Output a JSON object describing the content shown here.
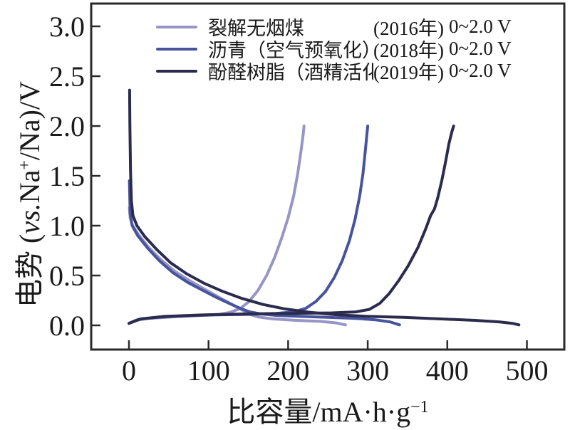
{
  "figure": {
    "background": "#ffffff",
    "frame_color": "#2a2a2a",
    "tick_color": "#2a2a2a",
    "text_color": "#1a1a1a"
  },
  "axes": {
    "x_label_main": "比容量/mA·h·g",
    "x_label_sup": "−1",
    "y_label_p1": "电势 (",
    "y_label_italic": "vs.",
    "y_label_p2": "Na",
    "y_label_sup": "+",
    "y_label_p3": "/Na)/V"
  },
  "chart_data": {
    "type": "line",
    "title": "",
    "xlabel": "比容量/mA·h·g⁻¹",
    "ylabel": "电势 (vs.Na⁺/Na)/V",
    "xlim": [
      -47,
      547
    ],
    "ylim": [
      -0.24,
      3.23
    ],
    "x_ticks": [
      0,
      100,
      200,
      300,
      400,
      500
    ],
    "y_ticks": [
      {
        "v": 0.0,
        "label": "0.0"
      },
      {
        "v": 0.5,
        "label": "0.5"
      },
      {
        "v": 1.0,
        "label": "1.0"
      },
      {
        "v": 1.5,
        "label": "1.5"
      },
      {
        "v": 2.0,
        "label": "2.0"
      },
      {
        "v": 2.5,
        "label": "2.5"
      },
      {
        "v": 3.0,
        "label": "3.0"
      }
    ],
    "grid": false,
    "legend_position": "top-inside",
    "series": [
      {
        "name": "裂解无烟煤",
        "year": "(2016年)",
        "voltage_window": "0~2.0 V",
        "color": "#9795c5",
        "discharge_capacity_mAh_g": 272,
        "charge_capacity_mAh_g": 220,
        "discharge": [
          [
            0.5,
            1.18
          ],
          [
            1.5,
            1.08
          ],
          [
            4,
            1.01
          ],
          [
            12,
            0.91
          ],
          [
            25,
            0.78
          ],
          [
            40,
            0.66
          ],
          [
            58,
            0.54
          ],
          [
            78,
            0.44
          ],
          [
            100,
            0.34
          ],
          [
            118,
            0.26
          ],
          [
            132,
            0.2
          ],
          [
            143,
            0.15
          ],
          [
            152,
            0.11
          ],
          [
            162,
            0.085
          ],
          [
            180,
            0.065
          ],
          [
            210,
            0.05
          ],
          [
            240,
            0.04
          ],
          [
            260,
            0.025
          ],
          [
            272,
            0.005
          ]
        ],
        "charge": [
          [
            0,
            0.02
          ],
          [
            8,
            0.05
          ],
          [
            25,
            0.07
          ],
          [
            55,
            0.085
          ],
          [
            90,
            0.1
          ],
          [
            113,
            0.11
          ],
          [
            127,
            0.13
          ],
          [
            140,
            0.17
          ],
          [
            151,
            0.24
          ],
          [
            162,
            0.35
          ],
          [
            173,
            0.5
          ],
          [
            183,
            0.68
          ],
          [
            192,
            0.88
          ],
          [
            200,
            1.08
          ],
          [
            207,
            1.3
          ],
          [
            212,
            1.52
          ],
          [
            216,
            1.74
          ],
          [
            219,
            1.92
          ],
          [
            220,
            2.0
          ]
        ]
      },
      {
        "name": "沥青（空气预氧化）",
        "year": "(2018年)",
        "voltage_window": "0~2.0 V",
        "color": "#47549c",
        "discharge_capacity_mAh_g": 340,
        "charge_capacity_mAh_g": 300,
        "discharge": [
          [
            0.5,
            1.45
          ],
          [
            1.5,
            1.12
          ],
          [
            4,
            1.0
          ],
          [
            11,
            0.9
          ],
          [
            24,
            0.77
          ],
          [
            38,
            0.65
          ],
          [
            55,
            0.53
          ],
          [
            74,
            0.43
          ],
          [
            93,
            0.35
          ],
          [
            110,
            0.28
          ],
          [
            126,
            0.22
          ],
          [
            140,
            0.17
          ],
          [
            152,
            0.135
          ],
          [
            165,
            0.115
          ],
          [
            185,
            0.1
          ],
          [
            215,
            0.09
          ],
          [
            250,
            0.08
          ],
          [
            285,
            0.07
          ],
          [
            310,
            0.055
          ],
          [
            328,
            0.035
          ],
          [
            340,
            0.005
          ]
        ],
        "charge": [
          [
            0,
            0.02
          ],
          [
            12,
            0.06
          ],
          [
            35,
            0.08
          ],
          [
            70,
            0.095
          ],
          [
            110,
            0.105
          ],
          [
            150,
            0.11
          ],
          [
            185,
            0.12
          ],
          [
            207,
            0.135
          ],
          [
            222,
            0.17
          ],
          [
            235,
            0.24
          ],
          [
            247,
            0.34
          ],
          [
            258,
            0.48
          ],
          [
            268,
            0.65
          ],
          [
            277,
            0.85
          ],
          [
            284,
            1.06
          ],
          [
            290,
            1.3
          ],
          [
            294,
            1.52
          ],
          [
            297,
            1.75
          ],
          [
            299,
            1.92
          ],
          [
            300,
            2.0
          ]
        ]
      },
      {
        "name": "酚醛树脂（酒精活化）",
        "year": "(2019年)",
        "voltage_window": "0~2.0 V",
        "color": "#2b2b4e",
        "discharge_capacity_mAh_g": 490,
        "charge_capacity_mAh_g": 408,
        "discharge": [
          [
            0.8,
            2.36
          ],
          [
            1.2,
            2.0
          ],
          [
            2,
            1.55
          ],
          [
            3,
            1.25
          ],
          [
            5,
            1.1
          ],
          [
            10,
            1.0
          ],
          [
            20,
            0.89
          ],
          [
            35,
            0.76
          ],
          [
            52,
            0.63
          ],
          [
            72,
            0.52
          ],
          [
            95,
            0.42
          ],
          [
            118,
            0.34
          ],
          [
            142,
            0.27
          ],
          [
            168,
            0.21
          ],
          [
            196,
            0.165
          ],
          [
            228,
            0.13
          ],
          [
            262,
            0.105
          ],
          [
            300,
            0.09
          ],
          [
            345,
            0.08
          ],
          [
            390,
            0.065
          ],
          [
            435,
            0.05
          ],
          [
            465,
            0.035
          ],
          [
            482,
            0.02
          ],
          [
            490,
            0.005
          ]
        ],
        "charge": [
          [
            0,
            0.02
          ],
          [
            15,
            0.065
          ],
          [
            45,
            0.09
          ],
          [
            95,
            0.105
          ],
          [
            150,
            0.115
          ],
          [
            205,
            0.12
          ],
          [
            255,
            0.125
          ],
          [
            285,
            0.135
          ],
          [
            302,
            0.16
          ],
          [
            315,
            0.22
          ],
          [
            327,
            0.32
          ],
          [
            339,
            0.45
          ],
          [
            351,
            0.6
          ],
          [
            363,
            0.78
          ],
          [
            373,
            0.97
          ],
          [
            379,
            1.1
          ],
          [
            384,
            1.17
          ],
          [
            388,
            1.28
          ],
          [
            393,
            1.45
          ],
          [
            398,
            1.65
          ],
          [
            402,
            1.82
          ],
          [
            406,
            1.95
          ],
          [
            408,
            2.0
          ]
        ]
      }
    ]
  }
}
